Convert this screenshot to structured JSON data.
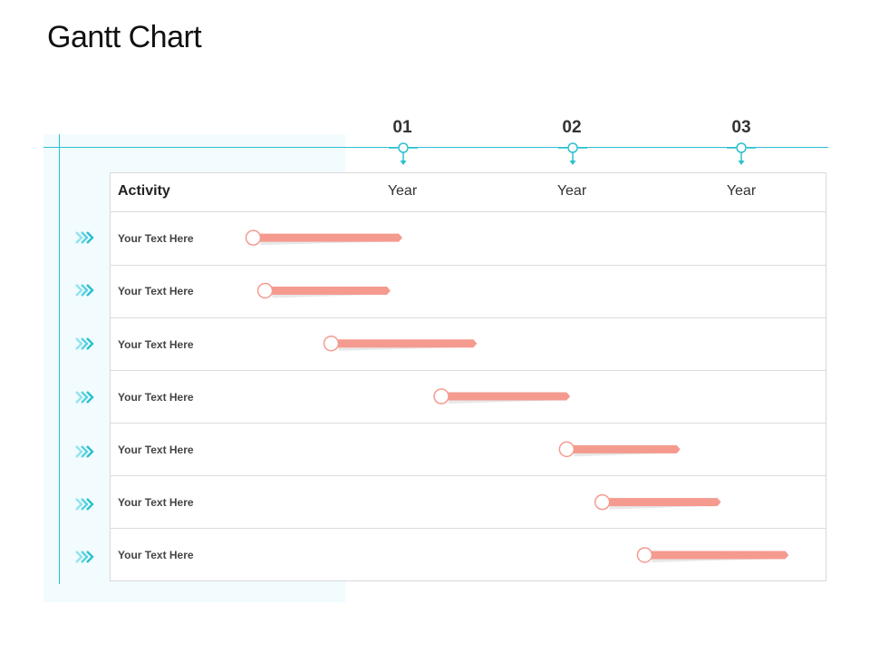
{
  "title": "Gantt Chart",
  "header": {
    "activity_label": "Activity",
    "columns": [
      {
        "number": "01",
        "label": "Year"
      },
      {
        "number": "02",
        "label": "Year"
      },
      {
        "number": "03",
        "label": "Year"
      }
    ]
  },
  "colors": {
    "accent": "#2bbfcf",
    "bar": "#f59a8f",
    "bar_shadow": "#d9d9d9"
  },
  "chart_data": {
    "type": "bar",
    "orientation": "horizontal-gantt",
    "x_axis_label": "Year",
    "ticks": [
      "01",
      "02",
      "03"
    ],
    "xlim": [
      0,
      3.5
    ],
    "categories": [
      "Your Text Here",
      "Your Text Here",
      "Your Text Here",
      "Your Text Here",
      "Your Text Here",
      "Your Text Here",
      "Your Text Here"
    ],
    "tasks": [
      {
        "label": "Your Text Here",
        "start": 0.12,
        "end": 1.0
      },
      {
        "label": "Your Text Here",
        "start": 0.19,
        "end": 0.93
      },
      {
        "label": "Your Text Here",
        "start": 0.58,
        "end": 1.44
      },
      {
        "label": "Your Text Here",
        "start": 1.23,
        "end": 1.99
      },
      {
        "label": "Your Text Here",
        "start": 1.97,
        "end": 2.64
      },
      {
        "label": "Your Text Here",
        "start": 2.18,
        "end": 2.88
      },
      {
        "label": "Your Text Here",
        "start": 2.43,
        "end": 3.28
      }
    ]
  }
}
